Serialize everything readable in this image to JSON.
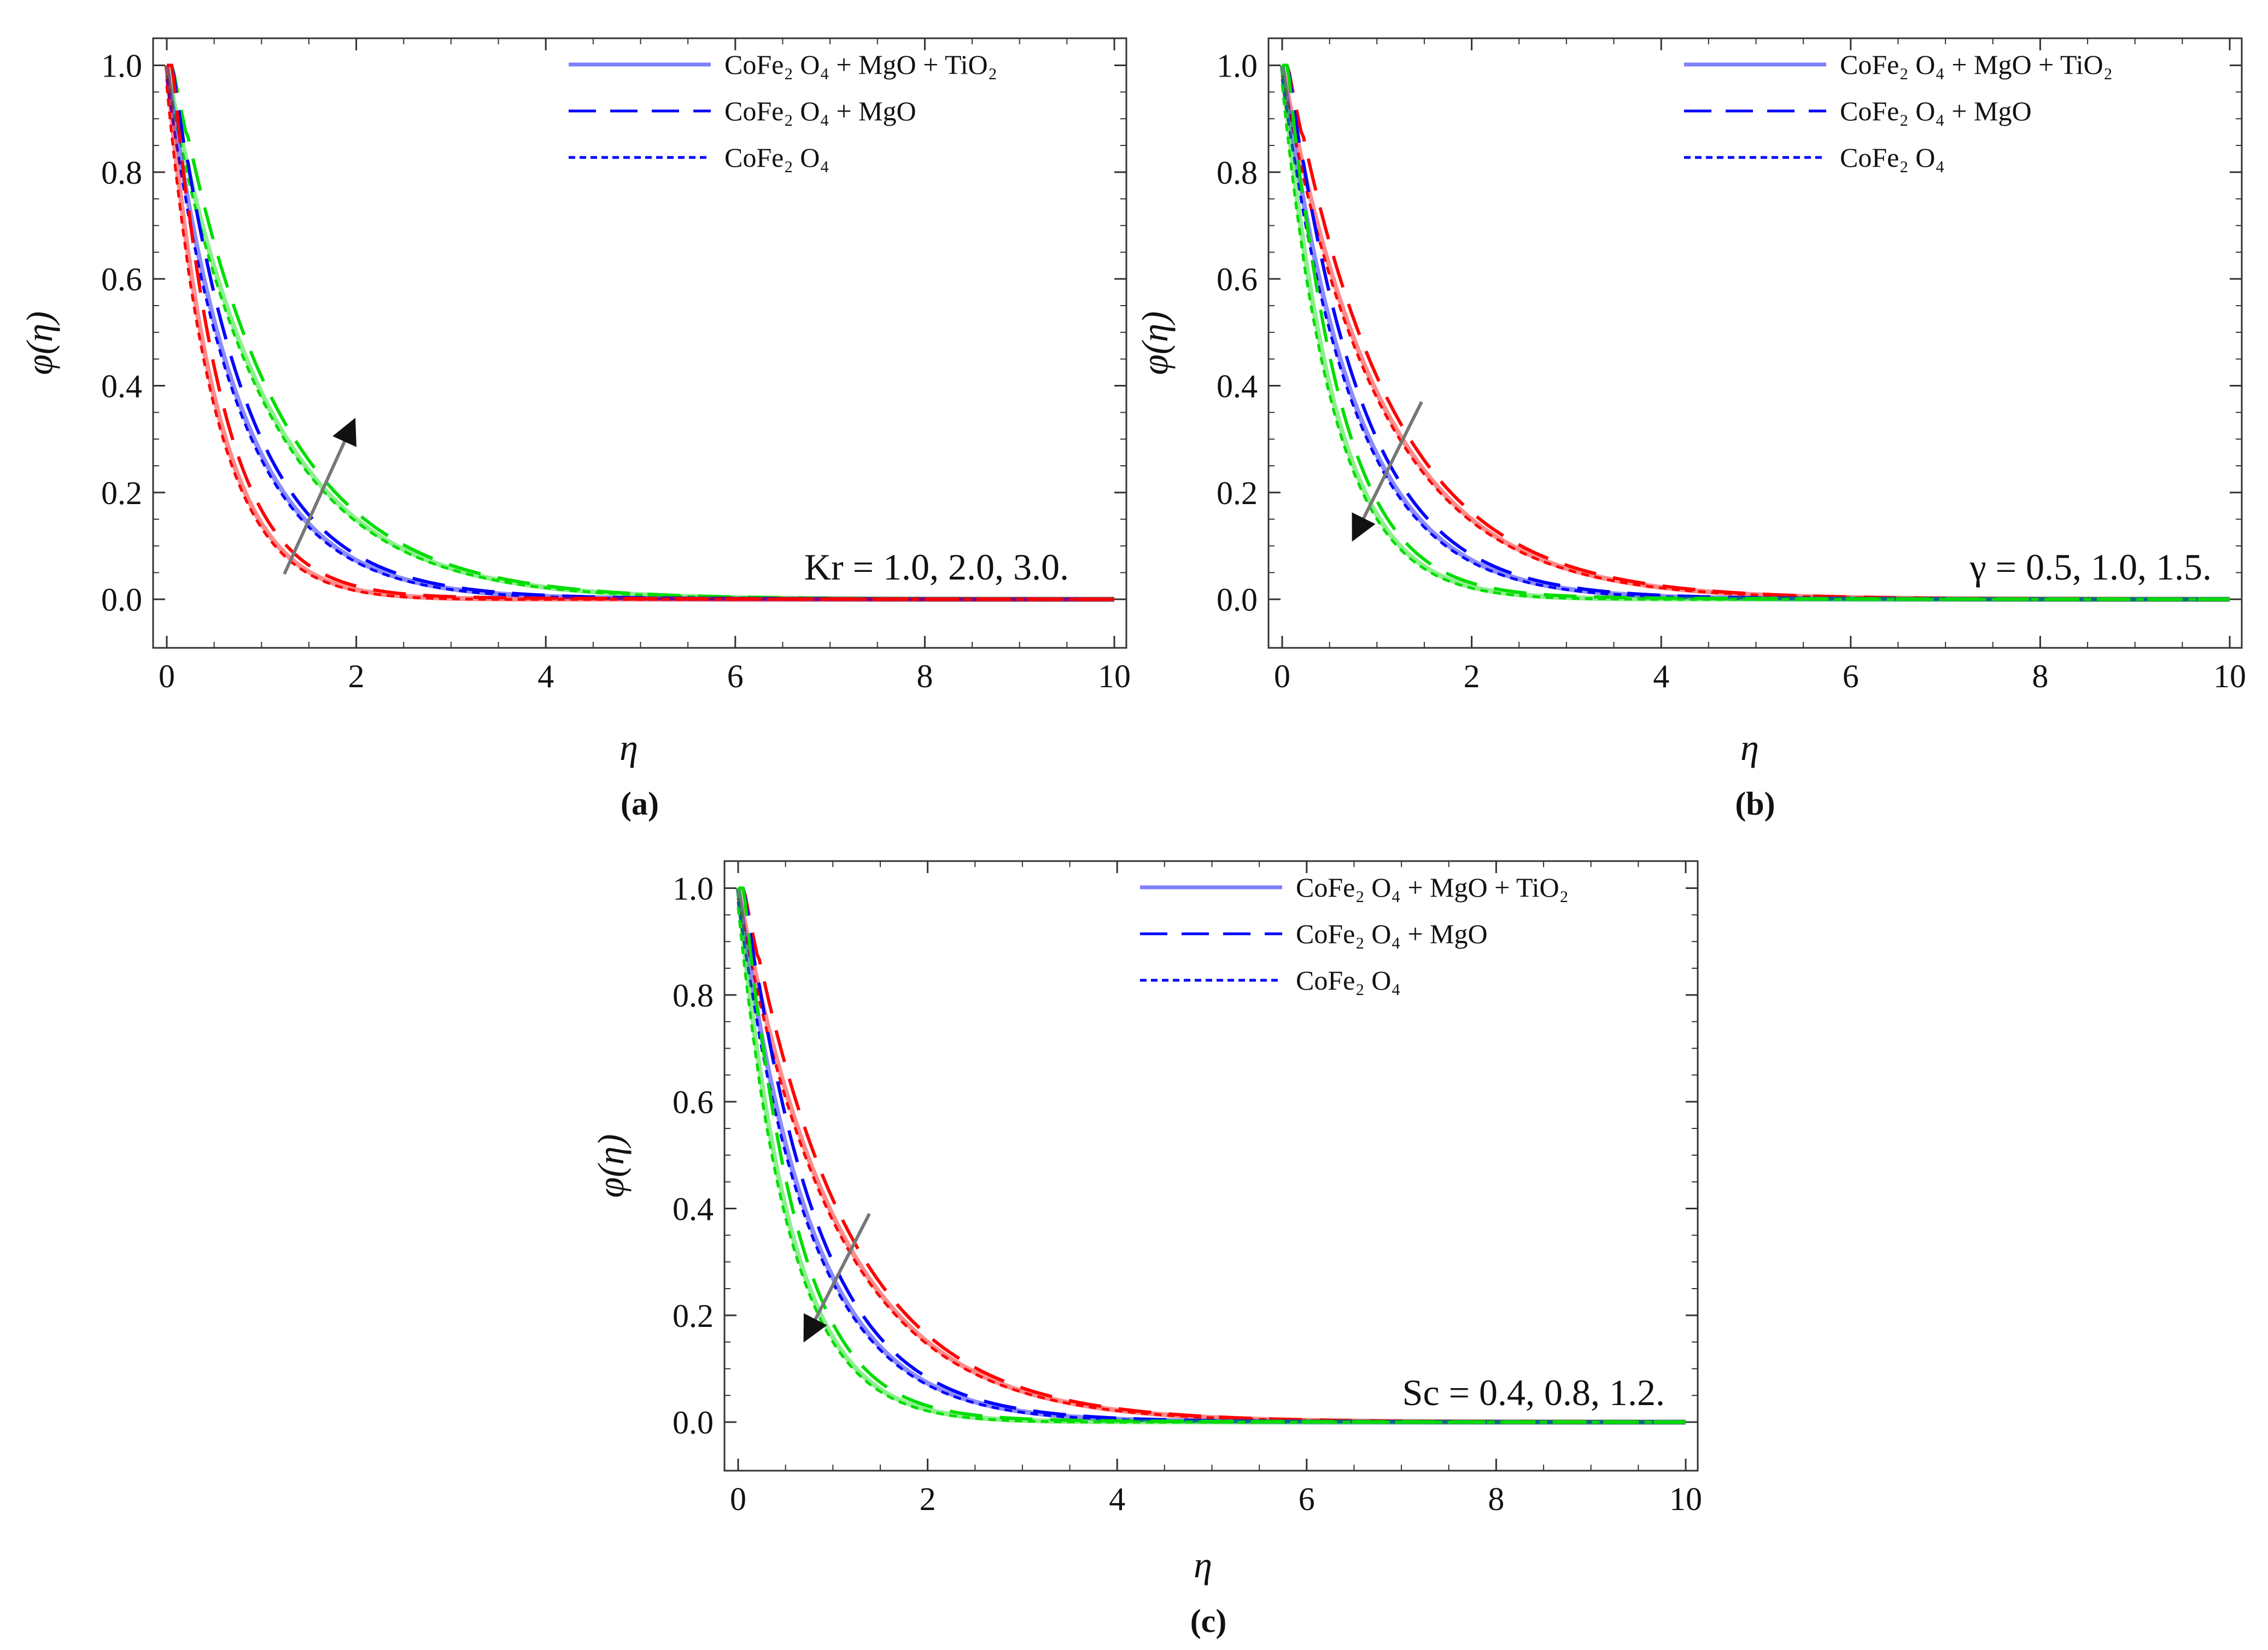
{
  "chart_data": [
    {
      "type": "line",
      "panel": "(a)",
      "xlabel": "η",
      "ylabel": "φ(η)",
      "xlim": [
        0,
        10
      ],
      "ylim": [
        -0.05,
        1.02
      ],
      "xticks": [
        "0",
        "2",
        "4",
        "6",
        "8",
        "10"
      ],
      "yticks": [
        "0.0",
        "0.2",
        "0.4",
        "0.6",
        "0.8",
        "1.0"
      ],
      "legend": [
        "CoFe₂ O₄ + MgO + TiO₂",
        "CoFe₂ O₄ + MgO",
        "CoFe₂ O₄"
      ],
      "annotation": "Kr = 1.0, 2.0, 3.0.",
      "arrow": "increasing",
      "series": [
        {
          "name": "Kr = 1.0",
          "color": "#00dd00",
          "decay_rate": 0.95,
          "undershoot": 0.0
        },
        {
          "name": "Kr = 2.0",
          "color": "#0000ff",
          "decay_rate": 1.3,
          "undershoot": 0.005
        },
        {
          "name": "Kr = 3.0",
          "color": "#ff0000",
          "decay_rate": 1.9,
          "undershoot": 0.03
        }
      ],
      "sample_points": {
        "eta": [
          0,
          1,
          2,
          4,
          6,
          10
        ],
        "green": [
          1.0,
          0.39,
          0.15,
          0.03,
          0.01,
          0.0
        ],
        "blue": [
          1.0,
          0.27,
          0.08,
          0.01,
          0.0,
          0.0
        ],
        "red": [
          1.0,
          0.15,
          0.01,
          -0.02,
          0.0,
          0.0
        ]
      }
    },
    {
      "type": "line",
      "panel": "(b)",
      "xlabel": "η",
      "ylabel": "φ(η)",
      "xlim": [
        0,
        10
      ],
      "ylim": [
        -0.05,
        1.02
      ],
      "xticks": [
        "0",
        "2",
        "4",
        "6",
        "8",
        "10"
      ],
      "yticks": [
        "0.0",
        "0.2",
        "0.4",
        "0.6",
        "0.8",
        "1.0"
      ],
      "legend": [
        "CoFe₂ O₄ + MgO + TiO₂",
        "CoFe₂ O₄ + MgO",
        "CoFe₂ O₄"
      ],
      "annotation": "γ = 0.5, 1.0, 1.5.",
      "arrow": "decreasing",
      "series": [
        {
          "name": "γ = 0.5",
          "color": "#ff0000",
          "decay_rate": 0.95,
          "undershoot": 0.0
        },
        {
          "name": "γ = 1.0",
          "color": "#0000ff",
          "decay_rate": 1.3,
          "undershoot": 0.005
        },
        {
          "name": "γ = 1.5",
          "color": "#00dd00",
          "decay_rate": 1.8,
          "undershoot": 0.025
        }
      ],
      "sample_points": {
        "eta": [
          0,
          1,
          2,
          4,
          6,
          10
        ],
        "red": [
          1.0,
          0.39,
          0.15,
          0.03,
          0.01,
          0.0
        ],
        "blue": [
          1.0,
          0.27,
          0.08,
          0.01,
          0.0,
          0.0
        ],
        "green": [
          1.0,
          0.17,
          0.02,
          -0.015,
          0.0,
          0.0
        ]
      }
    },
    {
      "type": "line",
      "panel": "(c)",
      "xlabel": "η",
      "ylabel": "φ(η)",
      "xlim": [
        0,
        10
      ],
      "ylim": [
        -0.05,
        1.02
      ],
      "xticks": [
        "0",
        "2",
        "4",
        "6",
        "8",
        "10"
      ],
      "yticks": [
        "0.0",
        "0.2",
        "0.4",
        "0.6",
        "0.8",
        "1.0"
      ],
      "legend": [
        "CoFe₂ O₄ + MgO + TiO₂",
        "CoFe₂ O₄ + MgO",
        "CoFe₂ O₄"
      ],
      "annotation": "Sc = 0.4, 0.8, 1.2.",
      "arrow": "decreasing",
      "series": [
        {
          "name": "Sc = 0.4",
          "color": "#ff0000",
          "decay_rate": 0.95,
          "undershoot": 0.0
        },
        {
          "name": "Sc = 0.8",
          "color": "#0000ff",
          "decay_rate": 1.3,
          "undershoot": 0.005
        },
        {
          "name": "Sc = 1.2",
          "color": "#00dd00",
          "decay_rate": 1.8,
          "undershoot": 0.025
        }
      ],
      "sample_points": {
        "eta": [
          0,
          1,
          2,
          4,
          6,
          10
        ],
        "red": [
          1.0,
          0.39,
          0.15,
          0.03,
          0.01,
          0.0
        ],
        "blue": [
          1.0,
          0.27,
          0.08,
          0.01,
          0.0,
          0.0
        ],
        "green": [
          1.0,
          0.17,
          0.02,
          -0.015,
          0.0,
          0.0
        ]
      }
    }
  ],
  "legend_styles": [
    "solid",
    "dashed",
    "dotted"
  ],
  "legend_color": "#0000ff"
}
